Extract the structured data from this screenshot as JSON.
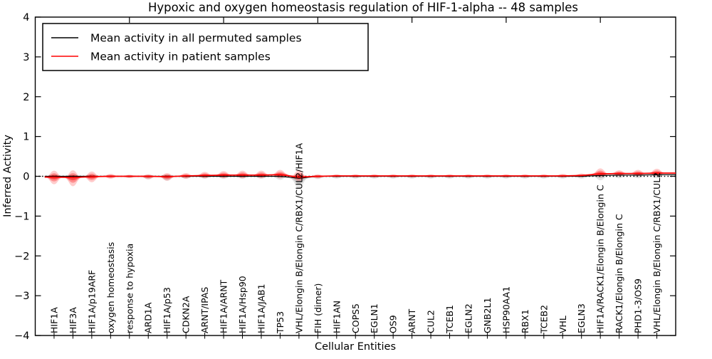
{
  "title": "Hypoxic and oxygen homeostasis regulation of HIF-1-alpha -- 48 samples",
  "colors": {
    "patient_line": "#ff0000",
    "permuted_line": "#000000",
    "patient_fill": "#ff0000",
    "permuted_fill": "#000000",
    "background": "#ffffff",
    "axis": "#000000"
  },
  "legend": {
    "entries": [
      {
        "label": "Mean activity in all permuted samples",
        "color": "#000000"
      },
      {
        "label": "Mean activity in patient samples",
        "color": "#ff0000"
      }
    ]
  },
  "chart_data": {
    "type": "violin",
    "title": "Hypoxic and oxygen homeostasis regulation of HIF-1-alpha -- 48 samples",
    "xlabel": "Cellular Entities",
    "ylabel": "Inferred Activity",
    "ylim": [
      -4,
      4
    ],
    "xlim": [
      0,
      34
    ],
    "grid": false,
    "legend_position": "upper left",
    "zero_line": {
      "y": 0,
      "style": "dotted",
      "color": "#000000"
    },
    "yticks": [
      {
        "v": 4,
        "label": "4"
      },
      {
        "v": 3,
        "label": "3"
      },
      {
        "v": 2,
        "label": "2"
      },
      {
        "v": 1,
        "label": "1"
      },
      {
        "v": 0,
        "label": "0"
      },
      {
        "v": -1,
        "label": "−1"
      },
      {
        "v": -2,
        "label": "−2"
      },
      {
        "v": -3,
        "label": "−3"
      },
      {
        "v": -4,
        "label": "−4"
      }
    ],
    "top_xticks": [
      5,
      10,
      15,
      20,
      25,
      30
    ],
    "series": [
      {
        "name": "Mean activity in all permuted samples",
        "color": "#000000"
      },
      {
        "name": "Mean activity in patient samples",
        "color": "#ff0000"
      }
    ],
    "entities": [
      {
        "label": "HIF1A",
        "red": {
          "up": 0.16,
          "dn": 0.18,
          "mean": -0.02
        },
        "gray": {
          "up": 0.05,
          "dn": 0.06,
          "mean": 0
        }
      },
      {
        "label": "HIF3A",
        "red": {
          "up": 0.18,
          "dn": 0.22,
          "mean": -0.03
        },
        "gray": {
          "up": 0.05,
          "dn": 0.06,
          "mean": 0
        }
      },
      {
        "label": "HIF1A/p19ARF",
        "red": {
          "up": 0.13,
          "dn": 0.14,
          "mean": -0.01
        },
        "gray": {
          "up": 0.04,
          "dn": 0.05,
          "mean": 0
        }
      },
      {
        "label": "oxygen homeostasis",
        "red": {
          "up": 0.06,
          "dn": 0.06,
          "mean": 0
        },
        "gray": {
          "up": 0.03,
          "dn": 0.04,
          "mean": 0
        }
      },
      {
        "label": "response to hypoxia",
        "red": {
          "up": 0.04,
          "dn": 0.04,
          "mean": 0
        },
        "gray": {
          "up": 0.03,
          "dn": 0.04,
          "mean": 0
        }
      },
      {
        "label": "ARD1A",
        "red": {
          "up": 0.05,
          "dn": 0.07,
          "mean": 0
        },
        "gray": {
          "up": 0.04,
          "dn": 0.08,
          "mean": 0
        }
      },
      {
        "label": "HIF1A/p53",
        "red": {
          "up": 0.09,
          "dn": 0.1,
          "mean": -0.01
        },
        "gray": {
          "up": 0.05,
          "dn": 0.11,
          "mean": 0
        }
      },
      {
        "label": "CDKN2A",
        "red": {
          "up": 0.07,
          "dn": 0.07,
          "mean": 0.01
        },
        "gray": {
          "up": 0.04,
          "dn": 0.06,
          "mean": 0
        }
      },
      {
        "label": "ARNT/IPAS",
        "red": {
          "up": 0.09,
          "dn": 0.07,
          "mean": 0.02
        },
        "gray": {
          "up": 0.04,
          "dn": 0.06,
          "mean": 0
        }
      },
      {
        "label": "HIF1A/ARNT",
        "red": {
          "up": 0.1,
          "dn": 0.08,
          "mean": 0.03
        },
        "gray": {
          "up": 0.04,
          "dn": 0.06,
          "mean": 0
        }
      },
      {
        "label": "HIF1A/Hsp90",
        "red": {
          "up": 0.11,
          "dn": 0.08,
          "mean": 0.03
        },
        "gray": {
          "up": 0.04,
          "dn": 0.06,
          "mean": 0
        }
      },
      {
        "label": "HIF1A/JAB1",
        "red": {
          "up": 0.11,
          "dn": 0.08,
          "mean": 0.03
        },
        "gray": {
          "up": 0.04,
          "dn": 0.06,
          "mean": 0
        }
      },
      {
        "label": "TP53",
        "red": {
          "up": 0.12,
          "dn": 0.09,
          "mean": 0.04
        },
        "gray": {
          "up": 0.05,
          "dn": 0.09,
          "mean": 0
        }
      },
      {
        "label": "VHL/Elongin B/Elongin C/RBX1/CUL2/HIF1A",
        "red": {
          "up": 0.18,
          "dn": 0.1,
          "mean": -0.02
        },
        "gray": {
          "up": 0.1,
          "dn": 0.27,
          "mean": -0.05
        }
      },
      {
        "label": "FIH (dimer)",
        "red": {
          "up": 0.05,
          "dn": 0.05,
          "mean": 0
        },
        "gray": {
          "up": 0.03,
          "dn": 0.07,
          "mean": 0
        }
      },
      {
        "label": "HIF1AN",
        "red": {
          "up": 0.04,
          "dn": 0.04,
          "mean": 0.01
        },
        "gray": {
          "up": 0.03,
          "dn": 0.06,
          "mean": 0
        }
      },
      {
        "label": "COPS5",
        "red": {
          "up": 0.04,
          "dn": 0.04,
          "mean": 0.01
        },
        "gray": {
          "up": 0.03,
          "dn": 0.06,
          "mean": 0
        }
      },
      {
        "label": "EGLN1",
        "red": {
          "up": 0.04,
          "dn": 0.04,
          "mean": 0.01
        },
        "gray": {
          "up": 0.03,
          "dn": 0.06,
          "mean": 0
        }
      },
      {
        "label": "OS9",
        "red": {
          "up": 0.04,
          "dn": 0.04,
          "mean": 0.01
        },
        "gray": {
          "up": 0.03,
          "dn": 0.06,
          "mean": 0
        }
      },
      {
        "label": "ARNT",
        "red": {
          "up": 0.04,
          "dn": 0.04,
          "mean": 0.01
        },
        "gray": {
          "up": 0.03,
          "dn": 0.06,
          "mean": 0
        }
      },
      {
        "label": "CUL2",
        "red": {
          "up": 0.04,
          "dn": 0.04,
          "mean": 0.01
        },
        "gray": {
          "up": 0.03,
          "dn": 0.06,
          "mean": 0
        }
      },
      {
        "label": "TCEB1",
        "red": {
          "up": 0.04,
          "dn": 0.04,
          "mean": 0.01
        },
        "gray": {
          "up": 0.03,
          "dn": 0.06,
          "mean": 0
        }
      },
      {
        "label": "EGLN2",
        "red": {
          "up": 0.04,
          "dn": 0.04,
          "mean": 0.01
        },
        "gray": {
          "up": 0.03,
          "dn": 0.06,
          "mean": 0
        }
      },
      {
        "label": "GNB2L1",
        "red": {
          "up": 0.04,
          "dn": 0.04,
          "mean": 0.01
        },
        "gray": {
          "up": 0.03,
          "dn": 0.06,
          "mean": 0
        }
      },
      {
        "label": "HSP90AA1",
        "red": {
          "up": 0.04,
          "dn": 0.04,
          "mean": 0.01
        },
        "gray": {
          "up": 0.03,
          "dn": 0.06,
          "mean": 0
        }
      },
      {
        "label": "RBX1",
        "red": {
          "up": 0.04,
          "dn": 0.04,
          "mean": 0.01
        },
        "gray": {
          "up": 0.03,
          "dn": 0.06,
          "mean": 0
        }
      },
      {
        "label": "TCEB2",
        "red": {
          "up": 0.04,
          "dn": 0.04,
          "mean": 0.01
        },
        "gray": {
          "up": 0.03,
          "dn": 0.06,
          "mean": 0
        }
      },
      {
        "label": "VHL",
        "red": {
          "up": 0.05,
          "dn": 0.04,
          "mean": 0.01
        },
        "gray": {
          "up": 0.03,
          "dn": 0.06,
          "mean": 0
        }
      },
      {
        "label": "EGLN3",
        "red": {
          "up": 0.05,
          "dn": 0.04,
          "mean": 0.02
        },
        "gray": {
          "up": 0.03,
          "dn": 0.06,
          "mean": 0
        }
      },
      {
        "label": "HIF1A/RACK1/Elongin B/Elongin C",
        "red": {
          "up": 0.14,
          "dn": 0.08,
          "mean": 0.06
        },
        "gray": {
          "up": 0.07,
          "dn": 0.12,
          "mean": 0.02
        }
      },
      {
        "label": "RACK1/Elongin B/Elongin C",
        "red": {
          "up": 0.08,
          "dn": 0.06,
          "mean": 0.07
        },
        "gray": {
          "up": 0.04,
          "dn": 0.08,
          "mean": 0.03
        }
      },
      {
        "label": "PHD1-3/OS9",
        "red": {
          "up": 0.09,
          "dn": 0.06,
          "mean": 0.07
        },
        "gray": {
          "up": 0.04,
          "dn": 0.08,
          "mean": 0.03
        }
      },
      {
        "label": "VHL/Elongin B/Elongin C/RBX1/CUL2",
        "red": {
          "up": 0.11,
          "dn": 0.07,
          "mean": 0.08
        },
        "gray": {
          "up": 0.05,
          "dn": 0.09,
          "mean": 0.04
        }
      }
    ]
  }
}
